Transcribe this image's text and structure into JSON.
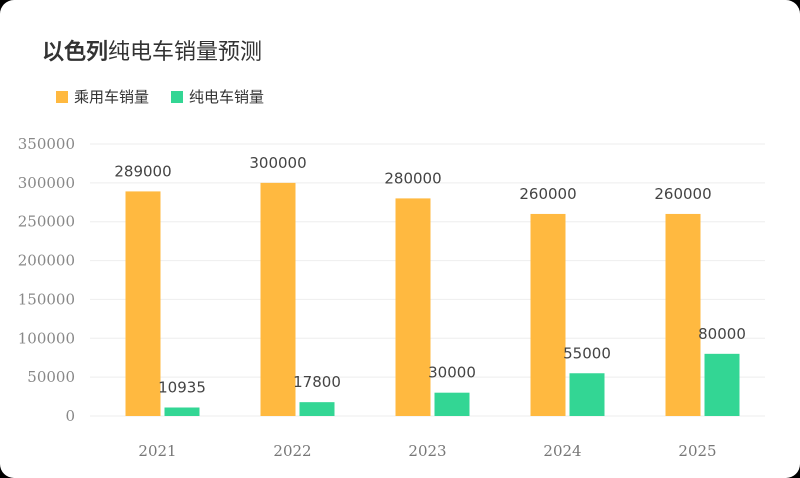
{
  "title": {
    "bold": "以色列",
    "rest": "纯电车销量预测"
  },
  "colors": {
    "passenger": "#FFB940",
    "ev": "#33D694",
    "grid": "#EEEEEE"
  },
  "chart_data": {
    "type": "bar",
    "categories": [
      "2021",
      "2022",
      "2023",
      "2024",
      "2025"
    ],
    "series": [
      {
        "name": "乘用车销量",
        "values": [
          289000,
          300000,
          280000,
          260000,
          260000
        ],
        "labels": [
          "289000",
          "300000",
          "280000",
          "260000",
          "260000"
        ]
      },
      {
        "name": "纯电车销量",
        "values": [
          10935,
          17800,
          30000,
          55000,
          80000
        ],
        "labels": [
          "10935",
          "17800",
          "30000",
          "55000",
          "80000"
        ]
      }
    ],
    "yticks": [
      "350000",
      "300000",
      "250000",
      "200000",
      "150000",
      "100000",
      "50000",
      "0"
    ],
    "ylim": [
      0,
      350000
    ],
    "legend_position": "top-left"
  }
}
